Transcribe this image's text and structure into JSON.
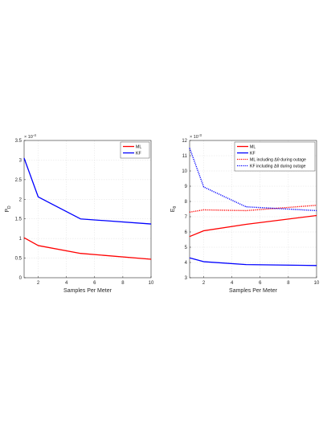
{
  "chart_data": [
    {
      "type": "line",
      "xlabel": "Samples Per Meter",
      "ylabel": "P",
      "ylabel_sub": "D",
      "y_exponent": "× 10^-4",
      "y_exponent_base": "× 10",
      "y_exponent_power": "-4",
      "xlim": [
        1,
        10
      ],
      "ylim": [
        0,
        3.5
      ],
      "xticks": [
        "2",
        "4",
        "6",
        "8",
        "10"
      ],
      "yticks": [
        "0",
        "0.5",
        "1",
        "1.5",
        "2",
        "2.5",
        "3",
        "3.5"
      ],
      "grid": true,
      "legend_position": "top-right",
      "series": [
        {
          "name": "ML",
          "color": "#ff0000",
          "style": "solid",
          "x": [
            1,
            2,
            5,
            10
          ],
          "y": [
            1.02,
            0.82,
            0.62,
            0.47
          ]
        },
        {
          "name": "KF",
          "color": "#0000ff",
          "style": "solid",
          "x": [
            1,
            2,
            5,
            10
          ],
          "y": [
            3.05,
            2.06,
            1.5,
            1.37
          ]
        }
      ]
    },
    {
      "type": "line",
      "xlabel": "Samples Per Meter",
      "ylabel": "E",
      "ylabel_sub": "θ",
      "y_exponent": "× 10^-3",
      "y_exponent_base": "× 10",
      "y_exponent_power": "-3",
      "xlim": [
        1,
        10
      ],
      "ylim": [
        3,
        12
      ],
      "xticks": [
        "2",
        "4",
        "6",
        "8",
        "10"
      ],
      "yticks": [
        "3",
        "4",
        "5",
        "6",
        "7",
        "8",
        "9",
        "10",
        "11",
        "12"
      ],
      "grid": true,
      "legend_position": "top-right",
      "series": [
        {
          "name": "ML",
          "color": "#ff0000",
          "style": "solid",
          "x": [
            1,
            2,
            5,
            10
          ],
          "y": [
            5.7,
            6.08,
            6.5,
            7.08
          ]
        },
        {
          "name": "KF",
          "color": "#0000ff",
          "style": "solid",
          "x": [
            1,
            2,
            5,
            10
          ],
          "y": [
            4.3,
            4.05,
            3.86,
            3.8
          ]
        },
        {
          "name": "ML including Δθ during outage",
          "color": "#ff0000",
          "style": "dotted",
          "x": [
            1,
            2,
            5,
            10
          ],
          "y": [
            7.3,
            7.45,
            7.4,
            7.75
          ]
        },
        {
          "name": "KF including Δθ during outage",
          "color": "#0000ff",
          "style": "dotted",
          "x": [
            1,
            2,
            5,
            10
          ],
          "y": [
            11.5,
            8.95,
            7.65,
            7.4
          ]
        }
      ]
    }
  ]
}
